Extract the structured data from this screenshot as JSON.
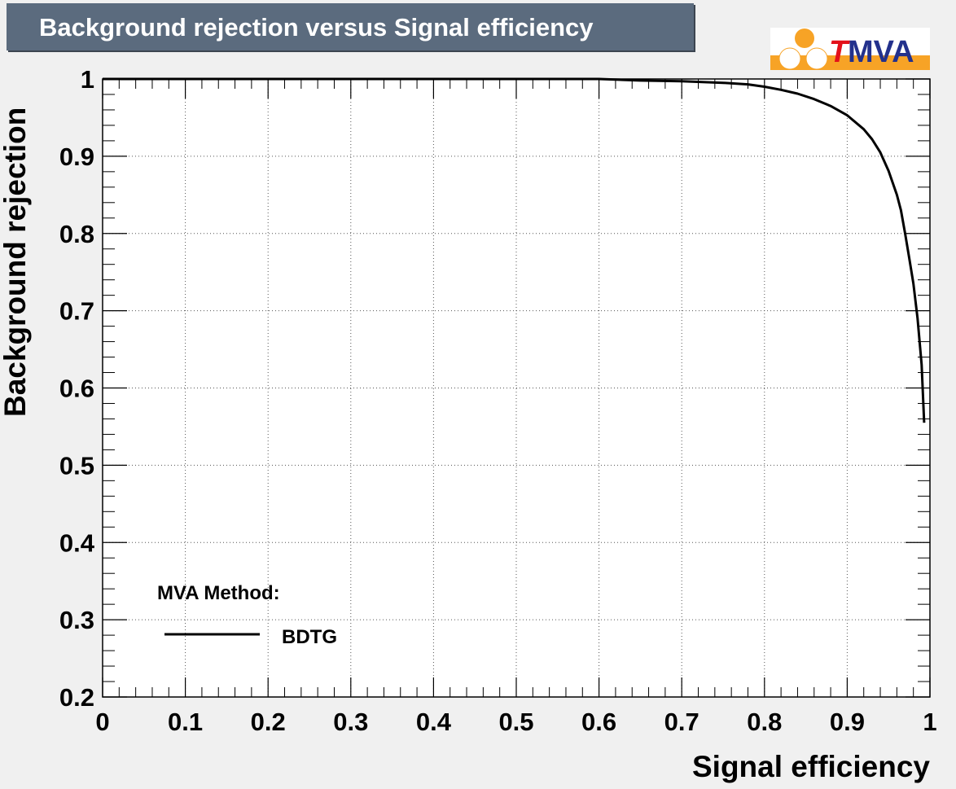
{
  "logo": {
    "letter_t": "T",
    "letters": "MVA",
    "colors": {
      "orange": "#f7a326",
      "navy": "#23318c",
      "red": "#e3111b"
    }
  },
  "chart_data": {
    "type": "line",
    "title": "Background rejection versus Signal efficiency",
    "xlabel": "Signal efficiency",
    "ylabel": "Background rejection",
    "xlim": [
      0,
      1
    ],
    "ylim": [
      0.2,
      1
    ],
    "xticks": [
      "0",
      "0.1",
      "0.2",
      "0.3",
      "0.4",
      "0.5",
      "0.6",
      "0.7",
      "0.8",
      "0.9",
      "1"
    ],
    "yticks": [
      "0.2",
      "0.3",
      "0.4",
      "0.5",
      "0.6",
      "0.7",
      "0.8",
      "0.9",
      "1"
    ],
    "grid": true,
    "legend": {
      "header": "MVA Method:",
      "placement": "bottom-left"
    },
    "series": [
      {
        "name": "BDTG",
        "color": "#000000",
        "x": [
          0.0,
          0.1,
          0.2,
          0.3,
          0.4,
          0.5,
          0.6,
          0.65,
          0.7,
          0.75,
          0.78,
          0.8,
          0.82,
          0.84,
          0.86,
          0.88,
          0.9,
          0.92,
          0.93,
          0.94,
          0.95,
          0.96,
          0.965,
          0.97,
          0.975,
          0.98,
          0.985,
          0.99,
          0.993
        ],
        "y": [
          1.0,
          1.0,
          1.0,
          1.0,
          1.0,
          1.0,
          1.0,
          0.998,
          0.997,
          0.995,
          0.993,
          0.99,
          0.986,
          0.981,
          0.974,
          0.965,
          0.953,
          0.935,
          0.922,
          0.905,
          0.881,
          0.85,
          0.83,
          0.8,
          0.768,
          0.735,
          0.69,
          0.63,
          0.555
        ]
      }
    ]
  }
}
